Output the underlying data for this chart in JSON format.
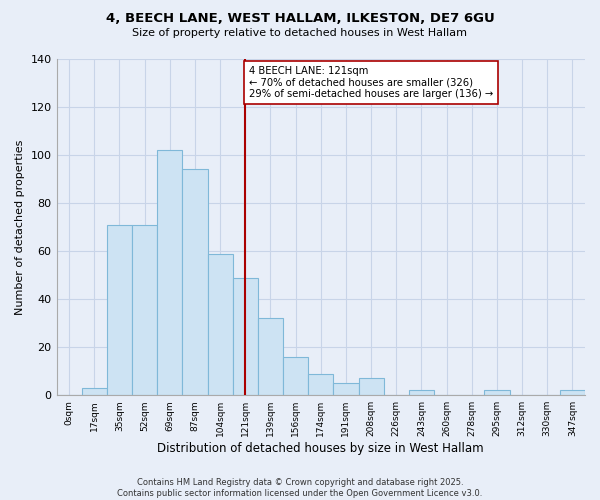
{
  "title": "4, BEECH LANE, WEST HALLAM, ILKESTON, DE7 6GU",
  "subtitle": "Size of property relative to detached houses in West Hallam",
  "xlabel": "Distribution of detached houses by size in West Hallam",
  "ylabel": "Number of detached properties",
  "bar_labels": [
    "0sqm",
    "17sqm",
    "35sqm",
    "52sqm",
    "69sqm",
    "87sqm",
    "104sqm",
    "121sqm",
    "139sqm",
    "156sqm",
    "174sqm",
    "191sqm",
    "208sqm",
    "226sqm",
    "243sqm",
    "260sqm",
    "278sqm",
    "295sqm",
    "312sqm",
    "330sqm",
    "347sqm"
  ],
  "bar_values": [
    0,
    3,
    71,
    71,
    102,
    94,
    59,
    49,
    32,
    16,
    9,
    5,
    7,
    0,
    2,
    0,
    0,
    2,
    0,
    0,
    2
  ],
  "bar_color": "#cde3f3",
  "bar_edge_color": "#7fb8d8",
  "vline_x_index": 7,
  "vline_color": "#aa0000",
  "annotation_text": "4 BEECH LANE: 121sqm\n← 70% of detached houses are smaller (326)\n29% of semi-detached houses are larger (136) →",
  "annotation_box_facecolor": "#ffffff",
  "annotation_box_edgecolor": "#aa0000",
  "ylim": [
    0,
    140
  ],
  "yticks": [
    0,
    20,
    40,
    60,
    80,
    100,
    120,
    140
  ],
  "grid_color": "#c8d4e8",
  "bg_color": "#e8eef8",
  "footer": "Contains HM Land Registry data © Crown copyright and database right 2025.\nContains public sector information licensed under the Open Government Licence v3.0."
}
